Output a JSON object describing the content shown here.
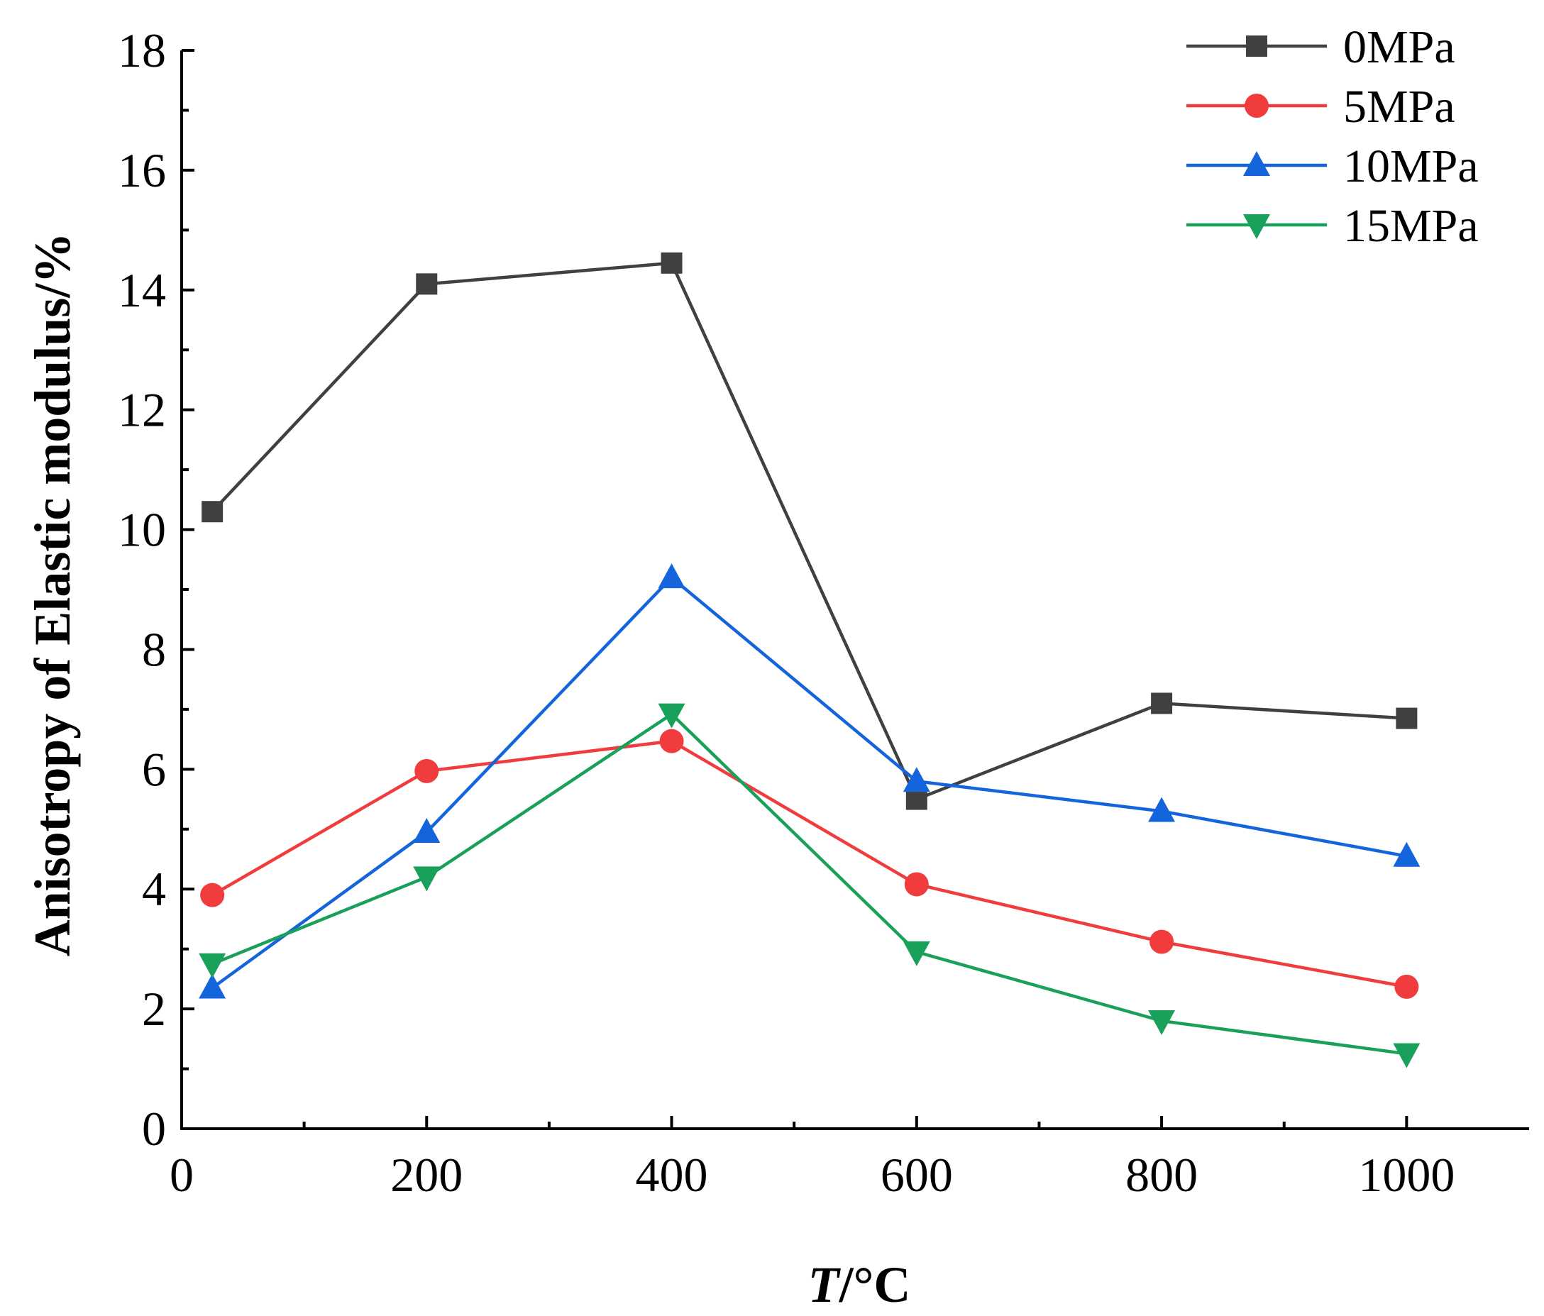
{
  "chart_data": {
    "type": "line",
    "title": "",
    "xlabel_italic": "T",
    "xlabel_rest": "/°C",
    "ylabel": "Anisotropy of Elastic modulus/%",
    "xlim": [
      0,
      1100
    ],
    "ylim": [
      0,
      18
    ],
    "x_ticks": [
      0,
      200,
      400,
      600,
      800,
      1000
    ],
    "y_ticks": [
      0,
      2,
      4,
      6,
      8,
      10,
      12,
      14,
      16,
      18
    ],
    "x": [
      25,
      200,
      400,
      600,
      800,
      1000
    ],
    "grid": false,
    "legend_position": "top-right",
    "series": [
      {
        "name": "0MPa",
        "marker": "square",
        "color": "#404040",
        "values": [
          10.3,
          14.1,
          14.45,
          5.5,
          7.1,
          6.85
        ]
      },
      {
        "name": "5MPa",
        "marker": "circle",
        "color": "#f03c3c",
        "values": [
          3.9,
          5.97,
          6.47,
          4.08,
          3.12,
          2.37
        ]
      },
      {
        "name": "10MPa",
        "marker": "triangle-up",
        "color": "#1464dc",
        "values": [
          2.35,
          4.95,
          9.2,
          5.8,
          5.3,
          4.55
        ]
      },
      {
        "name": "15MPa",
        "marker": "triangle-down",
        "color": "#19a05a",
        "values": [
          2.75,
          4.2,
          6.92,
          2.95,
          1.8,
          1.25
        ]
      }
    ]
  }
}
